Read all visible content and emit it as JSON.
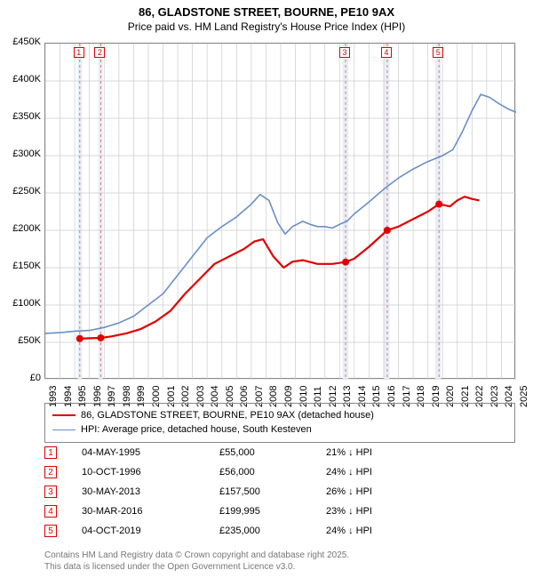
{
  "title": {
    "line1": "86, GLADSTONE STREET, BOURNE, PE10 9AX",
    "line2": "Price paid vs. HM Land Registry's House Price Index (HPI)"
  },
  "chart": {
    "type": "line",
    "background_color": "#ffffff",
    "grid_color": "#cccccc",
    "border_color": "#888888",
    "y_axis": {
      "min": 0,
      "max": 450000,
      "step": 50000,
      "labels": [
        "£0",
        "£50K",
        "£100K",
        "£150K",
        "£200K",
        "£250K",
        "£300K",
        "£350K",
        "£400K",
        "£450K"
      ],
      "fontsize": 11
    },
    "x_axis": {
      "min": 1993,
      "max": 2025,
      "step": 1,
      "labels": [
        "1993",
        "1994",
        "1995",
        "1996",
        "1997",
        "1998",
        "1999",
        "2000",
        "2001",
        "2002",
        "2003",
        "2004",
        "2005",
        "2006",
        "2007",
        "2008",
        "2009",
        "2010",
        "2011",
        "2012",
        "2013",
        "2014",
        "2015",
        "2016",
        "2017",
        "2018",
        "2019",
        "2020",
        "2021",
        "2022",
        "2023",
        "2024",
        "2025"
      ],
      "fontsize": 11
    },
    "shaded_bands": [
      {
        "from": 1995.2,
        "to": 1995.5,
        "color": "#e8eef7"
      },
      {
        "from": 1996.6,
        "to": 1996.9,
        "color": "#e8eef7"
      },
      {
        "from": 2013.2,
        "to": 2013.6,
        "color": "#e8eef7"
      },
      {
        "from": 2016.0,
        "to": 2016.4,
        "color": "#e8eef7"
      },
      {
        "from": 2019.5,
        "to": 2019.9,
        "color": "#e8eef7"
      }
    ],
    "event_lines": [
      {
        "x": 1995.34,
        "label": "1"
      },
      {
        "x": 1996.77,
        "label": "2"
      },
      {
        "x": 2013.41,
        "label": "3"
      },
      {
        "x": 2016.24,
        "label": "4"
      },
      {
        "x": 2019.76,
        "label": "5"
      }
    ],
    "event_line_color": "#e07878",
    "event_line_dash": "3,3",
    "series": [
      {
        "name": "price_paid",
        "label": "86, GLADSTONE STREET, BOURNE, PE10 9AX (detached house)",
        "color": "#e00000",
        "line_width": 2.2,
        "points": [
          [
            1995.34,
            55000
          ],
          [
            1996.0,
            55500
          ],
          [
            1996.77,
            56000
          ],
          [
            1997.5,
            58000
          ],
          [
            1998.5,
            62000
          ],
          [
            1999.5,
            68000
          ],
          [
            2000.5,
            78000
          ],
          [
            2001.5,
            92000
          ],
          [
            2002.5,
            115000
          ],
          [
            2003.5,
            135000
          ],
          [
            2004.5,
            155000
          ],
          [
            2005.5,
            165000
          ],
          [
            2006.5,
            175000
          ],
          [
            2007.2,
            185000
          ],
          [
            2007.8,
            188000
          ],
          [
            2008.5,
            165000
          ],
          [
            2009.2,
            150000
          ],
          [
            2009.8,
            158000
          ],
          [
            2010.5,
            160000
          ],
          [
            2011.5,
            155000
          ],
          [
            2012.5,
            155000
          ],
          [
            2013.41,
            157500
          ],
          [
            2014.0,
            162000
          ],
          [
            2015.0,
            178000
          ],
          [
            2016.24,
            199995
          ],
          [
            2017.0,
            205000
          ],
          [
            2018.0,
            215000
          ],
          [
            2019.0,
            225000
          ],
          [
            2019.76,
            235000
          ],
          [
            2020.5,
            232000
          ],
          [
            2021.0,
            240000
          ],
          [
            2021.5,
            245000
          ],
          [
            2022.0,
            242000
          ],
          [
            2022.5,
            240000
          ]
        ],
        "markers": [
          {
            "x": 1995.34,
            "y": 55000
          },
          {
            "x": 1996.77,
            "y": 56000
          },
          {
            "x": 2013.41,
            "y": 157500
          },
          {
            "x": 2016.24,
            "y": 199995
          },
          {
            "x": 2019.76,
            "y": 235000
          }
        ],
        "marker_color": "#e00000",
        "marker_size": 4
      },
      {
        "name": "hpi",
        "label": "HPI: Average price, detached house, South Kesteven",
        "color": "#6a8fc6",
        "line_width": 1.6,
        "points": [
          [
            1993.0,
            62000
          ],
          [
            1994.0,
            63000
          ],
          [
            1995.0,
            65000
          ],
          [
            1996.0,
            66000
          ],
          [
            1997.0,
            70000
          ],
          [
            1998.0,
            76000
          ],
          [
            1999.0,
            85000
          ],
          [
            2000.0,
            100000
          ],
          [
            2001.0,
            115000
          ],
          [
            2002.0,
            140000
          ],
          [
            2003.0,
            165000
          ],
          [
            2004.0,
            190000
          ],
          [
            2005.0,
            205000
          ],
          [
            2006.0,
            218000
          ],
          [
            2007.0,
            235000
          ],
          [
            2007.6,
            248000
          ],
          [
            2008.2,
            240000
          ],
          [
            2008.8,
            210000
          ],
          [
            2009.3,
            195000
          ],
          [
            2009.8,
            205000
          ],
          [
            2010.5,
            212000
          ],
          [
            2011.0,
            208000
          ],
          [
            2011.5,
            205000
          ],
          [
            2012.0,
            205000
          ],
          [
            2012.5,
            203000
          ],
          [
            2013.0,
            208000
          ],
          [
            2013.5,
            212000
          ],
          [
            2014.0,
            222000
          ],
          [
            2015.0,
            238000
          ],
          [
            2016.0,
            255000
          ],
          [
            2017.0,
            270000
          ],
          [
            2018.0,
            282000
          ],
          [
            2019.0,
            292000
          ],
          [
            2020.0,
            300000
          ],
          [
            2020.7,
            308000
          ],
          [
            2021.3,
            330000
          ],
          [
            2022.0,
            360000
          ],
          [
            2022.6,
            382000
          ],
          [
            2023.2,
            378000
          ],
          [
            2023.8,
            370000
          ],
          [
            2024.5,
            362000
          ],
          [
            2025.0,
            358000
          ]
        ]
      }
    ]
  },
  "legend": {
    "border_color": "#888888",
    "items": [
      {
        "label": "86, GLADSTONE STREET, BOURNE, PE10 9AX (detached house)",
        "color": "#e00000",
        "width": 2.2
      },
      {
        "label": "HPI: Average price, detached house, South Kesteven",
        "color": "#6a8fc6",
        "width": 1.6
      }
    ]
  },
  "events_table": {
    "marker_border_color": "#e00000",
    "rows": [
      {
        "n": "1",
        "date": "04-MAY-1995",
        "price": "£55,000",
        "pct": "21% ↓ HPI"
      },
      {
        "n": "2",
        "date": "10-OCT-1996",
        "price": "£56,000",
        "pct": "24% ↓ HPI"
      },
      {
        "n": "3",
        "date": "30-MAY-2013",
        "price": "£157,500",
        "pct": "26% ↓ HPI"
      },
      {
        "n": "4",
        "date": "30-MAR-2016",
        "price": "£199,995",
        "pct": "23% ↓ HPI"
      },
      {
        "n": "5",
        "date": "04-OCT-2019",
        "price": "£235,000",
        "pct": "24% ↓ HPI"
      }
    ]
  },
  "footer": {
    "line1": "Contains HM Land Registry data © Crown copyright and database right 2025.",
    "line2": "This data is licensed under the Open Government Licence v3.0."
  }
}
